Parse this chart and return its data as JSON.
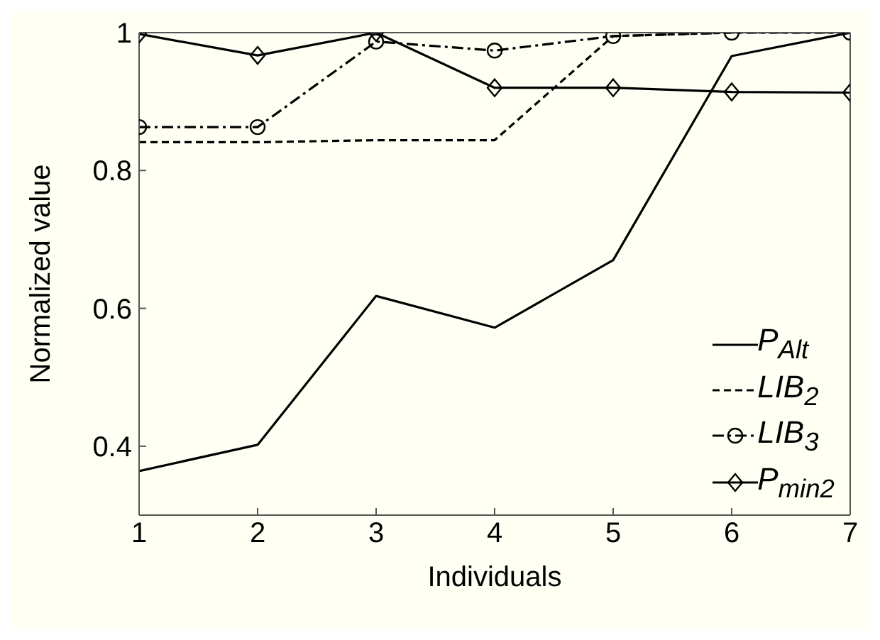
{
  "chart_data": {
    "type": "line",
    "xlabel": "Individuals",
    "ylabel": "Normalized value",
    "x": [
      1,
      2,
      3,
      4,
      5,
      6,
      7
    ],
    "xlim": [
      1,
      7
    ],
    "xticks": [
      1,
      2,
      3,
      4,
      5,
      6,
      7
    ],
    "ylim": [
      0.3,
      1
    ],
    "yticks": [
      0.4,
      0.6,
      0.8,
      1
    ],
    "grid": false,
    "legend": "bottom right",
    "series": [
      {
        "name": "P$_{Alt}$",
        "color": "#000000",
        "line_style": "solid",
        "marker": "none",
        "values": [
          0.364,
          0.402,
          0.618,
          0.572,
          0.67,
          0.966,
          1
        ]
      },
      {
        "name": "LIB$_{2}$",
        "color": "#000000",
        "line_style": "dashed",
        "marker": "none",
        "values": [
          0.841,
          0.841,
          0.844,
          0.844,
          0.995,
          1,
          1
        ]
      },
      {
        "name": "LIB$_{3}$",
        "color": "#000000",
        "line_style": "dashdot",
        "marker": "circle",
        "values": [
          0.863,
          0.863,
          0.987,
          0.974,
          0.995,
          1,
          1
        ]
      },
      {
        "name": "P$_{min2}$",
        "color": "#000000",
        "line_style": "solid",
        "marker": "diamond",
        "values": [
          0.998,
          0.967,
          1,
          0.92,
          0.92,
          0.914,
          0.913
        ]
      }
    ]
  }
}
